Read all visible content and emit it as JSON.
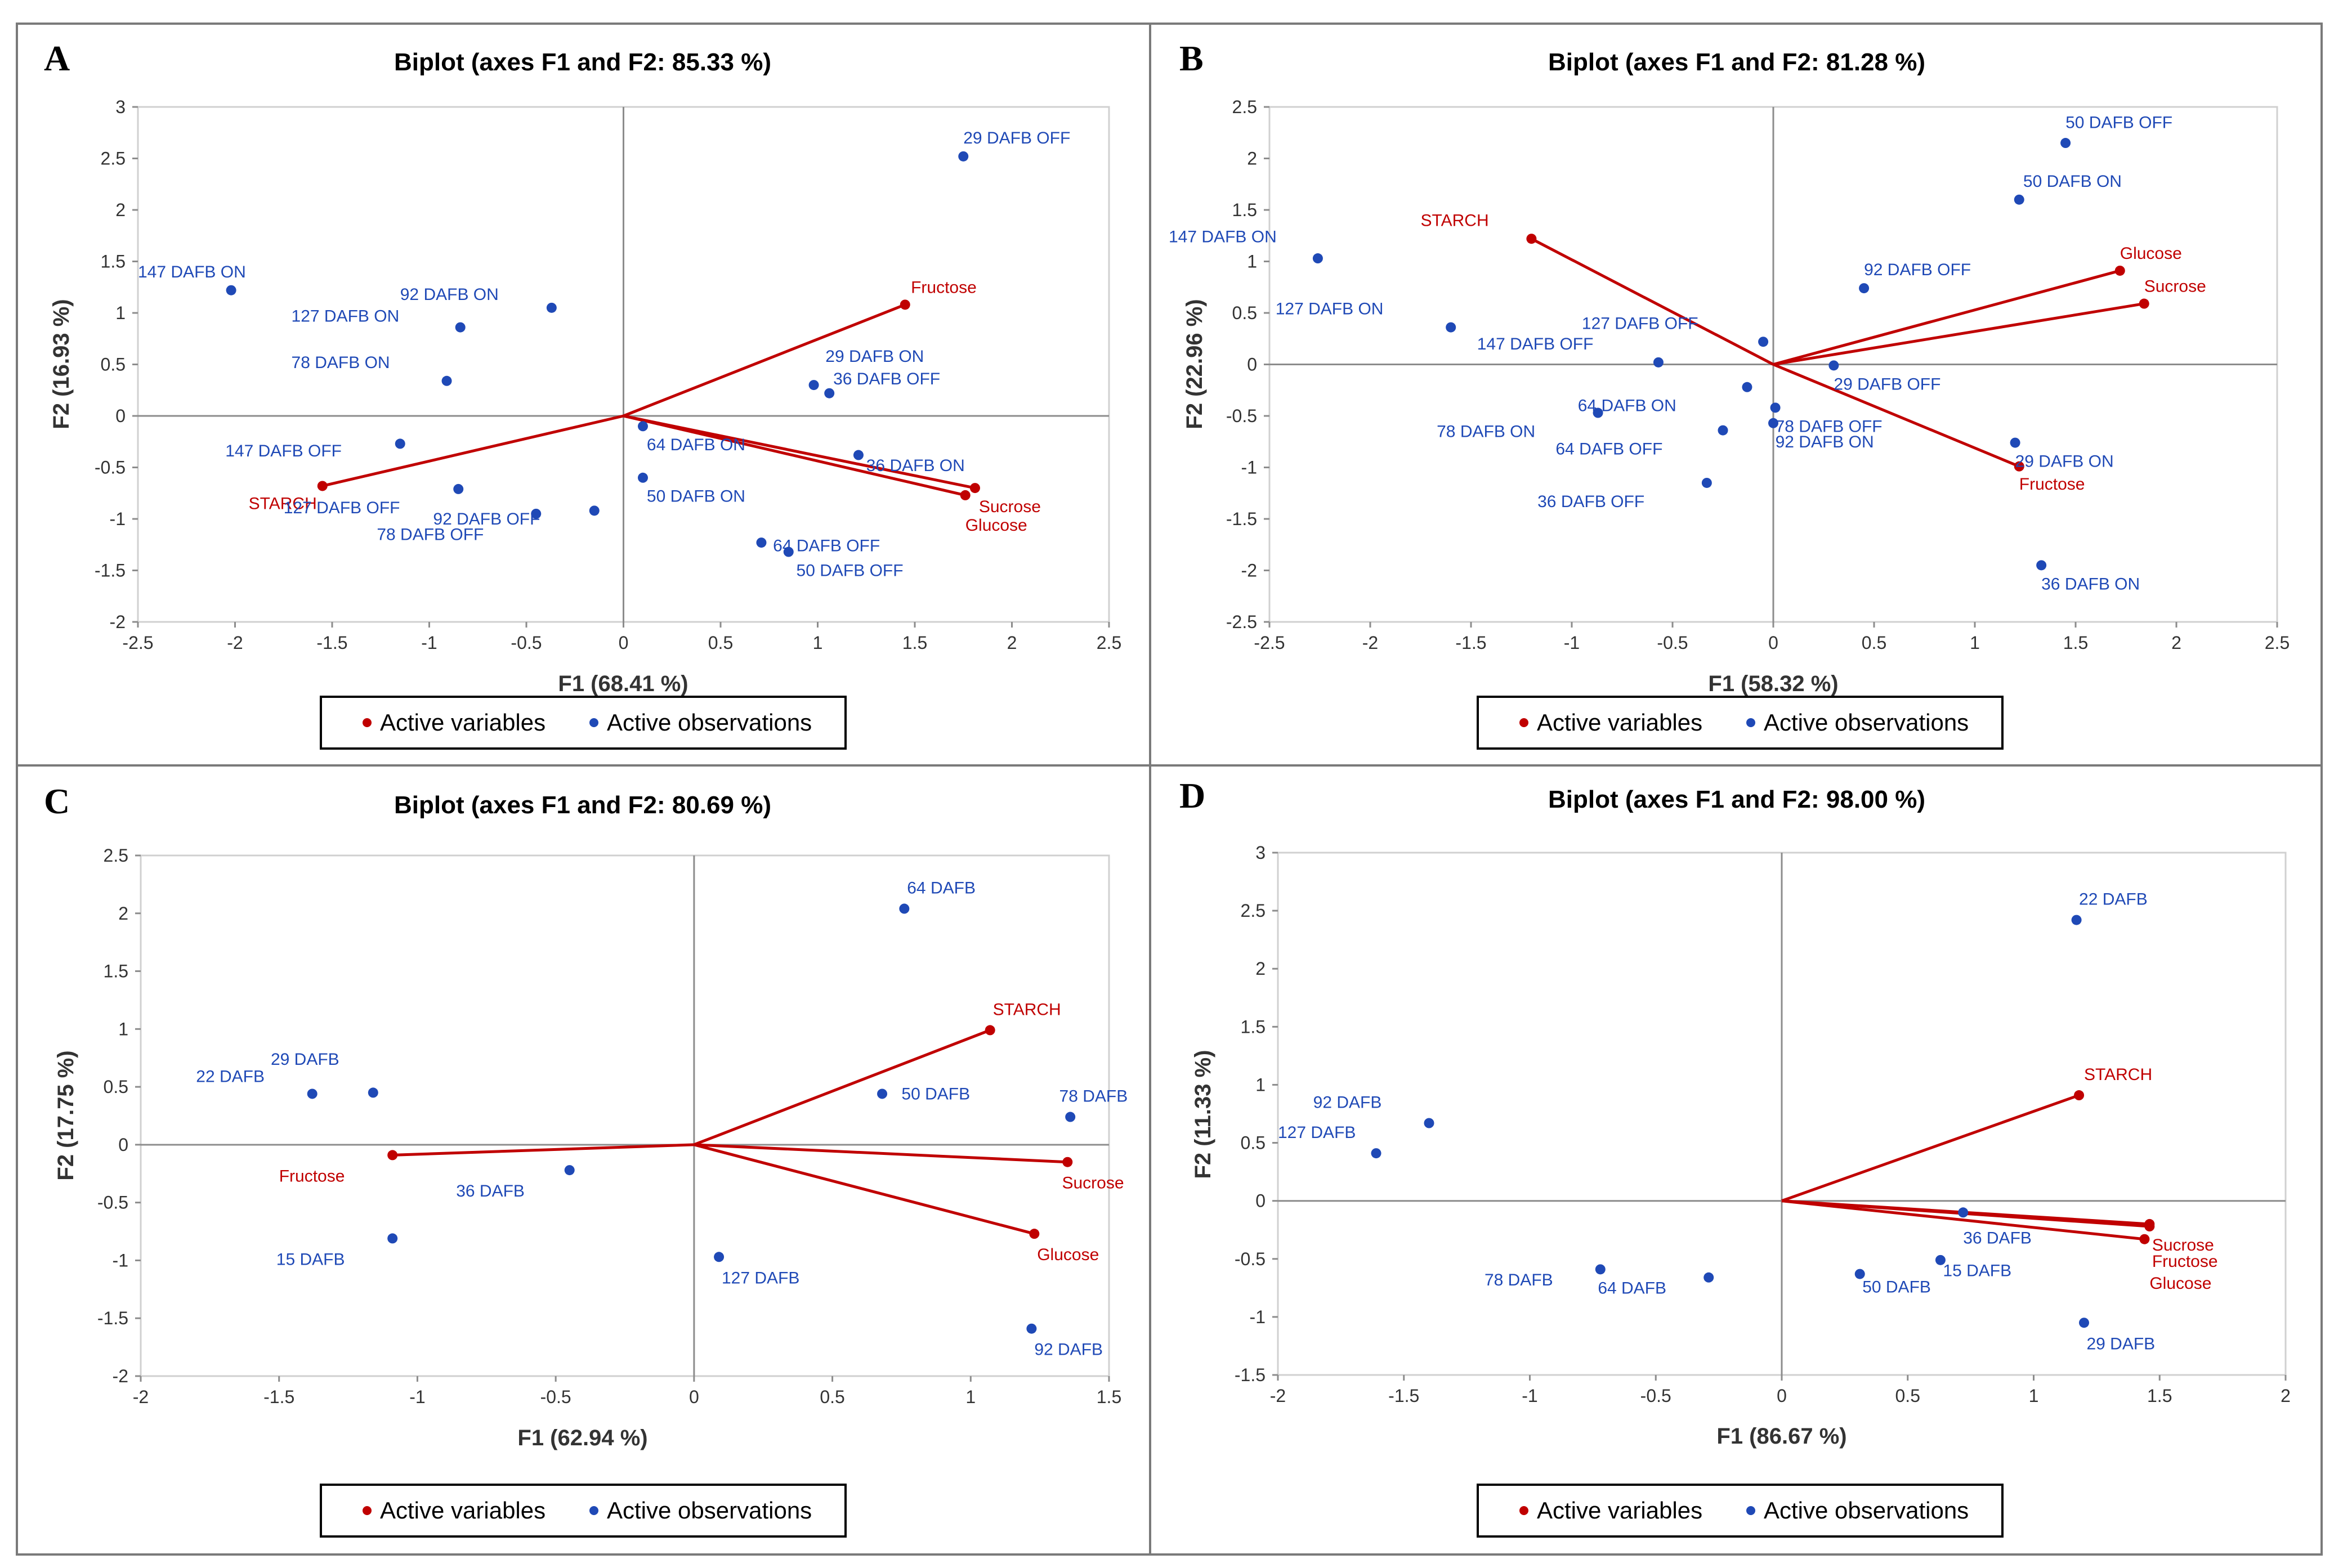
{
  "colors": {
    "variables": "#c00000",
    "observations": "#1f49b6",
    "axis": "#7f7f7f"
  },
  "legend": {
    "variables_label": "Active variables",
    "observations_label": "Active observations"
  },
  "chart_data": [
    {
      "type": "scatter",
      "panel": "A",
      "title": "Biplot (axes F1 and F2: 85.33 %)",
      "xlabel": "F1 (68.41 %)",
      "ylabel": "F2 (16.93 %)",
      "xlim": [
        -2.5,
        2.5
      ],
      "ylim": [
        -2,
        3
      ],
      "xticks": [
        -2.5,
        -2,
        -1.5,
        -1,
        -0.5,
        0,
        0.5,
        1,
        1.5,
        2,
        2.5
      ],
      "yticks": [
        -2,
        -1.5,
        -1,
        -0.5,
        0,
        0.5,
        1,
        1.5,
        2,
        2.5,
        3
      ],
      "variables": [
        {
          "name": "Fructose",
          "x": 1.45,
          "y": 1.08,
          "lx": 1.48,
          "ly": 1.25,
          "anchor": "start"
        },
        {
          "name": "STARCH",
          "x": -1.55,
          "y": -0.68,
          "lx": -1.93,
          "ly": -0.85,
          "anchor": "start"
        },
        {
          "name": "Sucrose",
          "x": 1.81,
          "y": -0.7,
          "lx": 1.83,
          "ly": -0.88,
          "anchor": "start"
        },
        {
          "name": "Glucose",
          "x": 1.76,
          "y": -0.77,
          "lx": 1.76,
          "ly": -1.06,
          "anchor": "start"
        }
      ],
      "observations": [
        {
          "name": "29 DAFB OFF",
          "x": 1.75,
          "y": 2.52,
          "lx": 1.75,
          "ly": 2.7,
          "anchor": "start"
        },
        {
          "name": "147 DAFB ON",
          "x": -2.02,
          "y": 1.22,
          "lx": -2.5,
          "ly": 1.4,
          "anchor": "start"
        },
        {
          "name": "92 DAFB ON",
          "x": -0.84,
          "y": 0.86,
          "lx": -1.15,
          "ly": 1.18,
          "anchor": "start"
        },
        {
          "name": "127 DAFB ON",
          "x": -0.37,
          "y": 1.05,
          "lx": -1.71,
          "ly": 0.97,
          "anchor": "start"
        },
        {
          "name": "78 DAFB ON",
          "x": -0.91,
          "y": 0.34,
          "lx": -1.71,
          "ly": 0.52,
          "anchor": "start"
        },
        {
          "name": "29 DAFB ON",
          "x": 0.98,
          "y": 0.3,
          "lx": 1.04,
          "ly": 0.58,
          "anchor": "start"
        },
        {
          "name": "36 DAFB OFF",
          "x": 1.06,
          "y": 0.22,
          "lx": 1.08,
          "ly": 0.36,
          "anchor": "start"
        },
        {
          "name": "147 DAFB OFF",
          "x": -1.15,
          "y": -0.27,
          "lx": -2.05,
          "ly": -0.34,
          "anchor": "start"
        },
        {
          "name": "64 DAFB ON",
          "x": 0.1,
          "y": -0.1,
          "lx": 0.12,
          "ly": -0.28,
          "anchor": "start"
        },
        {
          "name": "36 DAFB ON",
          "x": 1.21,
          "y": -0.38,
          "lx": 1.25,
          "ly": -0.48,
          "anchor": "start"
        },
        {
          "name": "127 DAFB OFF",
          "x": -0.85,
          "y": -0.71,
          "lx": -1.75,
          "ly": -0.89,
          "anchor": "start"
        },
        {
          "name": "50 DAFB ON",
          "x": 0.1,
          "y": -0.6,
          "lx": 0.12,
          "ly": -0.78,
          "anchor": "start"
        },
        {
          "name": "92 DAFB OFF",
          "x": -0.45,
          "y": -0.95,
          "lx": -0.98,
          "ly": -1.0,
          "anchor": "start"
        },
        {
          "name": "78 DAFB OFF",
          "x": -0.15,
          "y": -0.92,
          "lx": -1.27,
          "ly": -1.15,
          "anchor": "start"
        },
        {
          "name": "64 DAFB OFF",
          "x": 0.71,
          "y": -1.23,
          "lx": 0.77,
          "ly": -1.26,
          "anchor": "start"
        },
        {
          "name": "50 DAFB OFF",
          "x": 0.85,
          "y": -1.32,
          "lx": 0.89,
          "ly": -1.5,
          "anchor": "start"
        }
      ]
    },
    {
      "type": "scatter",
      "panel": "B",
      "title": "Biplot (axes F1 and F2: 81.28 %)",
      "xlabel": "F1 (58.32 %)",
      "ylabel": "F2 (22.96 %)",
      "xlim": [
        -2.5,
        2.5
      ],
      "ylim": [
        -2.5,
        2.5
      ],
      "xticks": [
        -2.5,
        -2,
        -1.5,
        -1,
        -0.5,
        0,
        0.5,
        1,
        1.5,
        2,
        2.5
      ],
      "yticks": [
        -2.5,
        -2,
        -1.5,
        -1,
        -0.5,
        0,
        0.5,
        1,
        1.5,
        2,
        2.5
      ],
      "variables": [
        {
          "name": "STARCH",
          "x": -1.2,
          "y": 1.22,
          "lx": -1.75,
          "ly": 1.4,
          "anchor": "start"
        },
        {
          "name": "Glucose",
          "x": 1.72,
          "y": 0.91,
          "lx": 1.72,
          "ly": 1.08,
          "anchor": "start"
        },
        {
          "name": "Sucrose",
          "x": 1.84,
          "y": 0.59,
          "lx": 1.84,
          "ly": 0.76,
          "anchor": "start"
        },
        {
          "name": "Fructose",
          "x": 1.22,
          "y": -0.99,
          "lx": 1.22,
          "ly": -1.16,
          "anchor": "start"
        }
      ],
      "observations": [
        {
          "name": "50 DAFB OFF",
          "x": 1.45,
          "y": 2.15,
          "lx": 1.45,
          "ly": 2.35,
          "anchor": "start"
        },
        {
          "name": "50 DAFB ON",
          "x": 1.22,
          "y": 1.6,
          "lx": 1.24,
          "ly": 1.78,
          "anchor": "start"
        },
        {
          "name": "147 DAFB ON",
          "x": -2.26,
          "y": 1.03,
          "lx": -3.0,
          "ly": 1.24,
          "anchor": "start"
        },
        {
          "name": "92 DAFB OFF",
          "x": 0.45,
          "y": 0.74,
          "lx": 0.45,
          "ly": 0.92,
          "anchor": "start"
        },
        {
          "name": "127 DAFB ON",
          "x": -1.6,
          "y": 0.36,
          "lx": -2.47,
          "ly": 0.54,
          "anchor": "start"
        },
        {
          "name": "127 DAFB OFF",
          "x": -0.05,
          "y": 0.22,
          "lx": -0.95,
          "ly": 0.4,
          "anchor": "start"
        },
        {
          "name": "147 DAFB OFF",
          "x": -0.57,
          "y": 0.02,
          "lx": -1.47,
          "ly": 0.2,
          "anchor": "start"
        },
        {
          "name": "29 DAFB OFF",
          "x": 0.3,
          "y": -0.01,
          "lx": 0.3,
          "ly": -0.19,
          "anchor": "start"
        },
        {
          "name": "64 DAFB ON",
          "x": -0.13,
          "y": -0.22,
          "lx": -0.97,
          "ly": -0.4,
          "anchor": "start"
        },
        {
          "name": "78 DAFB ON",
          "x": -0.87,
          "y": -0.47,
          "lx": -1.67,
          "ly": -0.65,
          "anchor": "start"
        },
        {
          "name": "78 DAFB OFF",
          "x": 0.01,
          "y": -0.42,
          "lx": 0.01,
          "ly": -0.6,
          "anchor": "start"
        },
        {
          "name": "64 DAFB OFF",
          "x": -0.25,
          "y": -0.64,
          "lx": -1.08,
          "ly": -0.82,
          "anchor": "start"
        },
        {
          "name": "92 DAFB ON",
          "x": 0.0,
          "y": -0.57,
          "lx": 0.01,
          "ly": -0.75,
          "anchor": "start"
        },
        {
          "name": "29 DAFB ON",
          "x": 1.2,
          "y": -0.76,
          "lx": 1.2,
          "ly": -0.94,
          "anchor": "start"
        },
        {
          "name": "36 DAFB OFF",
          "x": -0.33,
          "y": -1.15,
          "lx": -1.17,
          "ly": -1.33,
          "anchor": "start"
        },
        {
          "name": "36 DAFB ON",
          "x": 1.33,
          "y": -1.95,
          "lx": 1.33,
          "ly": -2.13,
          "anchor": "start"
        }
      ]
    },
    {
      "type": "scatter",
      "panel": "C",
      "title": "Biplot (axes F1 and F2: 80.69 %)",
      "xlabel": "F1 (62.94 %)",
      "ylabel": "F2 (17.75 %)",
      "xlim": [
        -2,
        1.5
      ],
      "ylim": [
        -2,
        2.5
      ],
      "xticks": [
        -2,
        -1.5,
        -1,
        -0.5,
        0,
        0.5,
        1,
        1.5
      ],
      "yticks": [
        -2,
        -1.5,
        -1,
        -0.5,
        0,
        0.5,
        1,
        1.5,
        2,
        2.5
      ],
      "variables": [
        {
          "name": "STARCH",
          "x": 1.07,
          "y": 0.99,
          "lx": 1.08,
          "ly": 1.17,
          "anchor": "start"
        },
        {
          "name": "Fructose",
          "x": -1.09,
          "y": -0.09,
          "lx": -1.5,
          "ly": -0.27,
          "anchor": "start"
        },
        {
          "name": "Sucrose",
          "x": 1.35,
          "y": -0.15,
          "lx": 1.33,
          "ly": -0.33,
          "anchor": "start"
        },
        {
          "name": "Glucose",
          "x": 1.23,
          "y": -0.77,
          "lx": 1.24,
          "ly": -0.95,
          "anchor": "start"
        }
      ],
      "observations": [
        {
          "name": "64 DAFB",
          "x": 0.76,
          "y": 2.04,
          "lx": 0.77,
          "ly": 2.22,
          "anchor": "start"
        },
        {
          "name": "29 DAFB",
          "x": -1.16,
          "y": 0.45,
          "lx": -1.53,
          "ly": 0.74,
          "anchor": "start"
        },
        {
          "name": "22 DAFB",
          "x": -1.38,
          "y": 0.44,
          "lx": -1.8,
          "ly": 0.59,
          "anchor": "start"
        },
        {
          "name": "50 DAFB",
          "x": 0.68,
          "y": 0.44,
          "lx": 0.75,
          "ly": 0.44,
          "anchor": "start"
        },
        {
          "name": "78 DAFB",
          "x": 1.36,
          "y": 0.24,
          "lx": 1.32,
          "ly": 0.42,
          "anchor": "start"
        },
        {
          "name": "36 DAFB",
          "x": -0.45,
          "y": -0.22,
          "lx": -0.86,
          "ly": -0.4,
          "anchor": "start"
        },
        {
          "name": "15 DAFB",
          "x": -1.09,
          "y": -0.81,
          "lx": -1.51,
          "ly": -0.99,
          "anchor": "start"
        },
        {
          "name": "127 DAFB",
          "x": 0.09,
          "y": -0.97,
          "lx": 0.1,
          "ly": -1.15,
          "anchor": "start"
        },
        {
          "name": "92 DAFB",
          "x": 1.22,
          "y": -1.59,
          "lx": 1.23,
          "ly": -1.77,
          "anchor": "start"
        }
      ]
    },
    {
      "type": "scatter",
      "panel": "D",
      "title": "Biplot (axes F1 and F2: 98.00 %)",
      "xlabel": "F1 (86.67 %)",
      "ylabel": "F2 (11.33 %)",
      "xlim": [
        -2,
        2
      ],
      "ylim": [
        -1.5,
        3
      ],
      "xticks": [
        -2,
        -1.5,
        -1,
        -0.5,
        0,
        0.5,
        1,
        1.5,
        2
      ],
      "yticks": [
        -1.5,
        -1,
        -0.5,
        0,
        0.5,
        1,
        1.5,
        2,
        2.5,
        3
      ],
      "variables": [
        {
          "name": "STARCH",
          "x": 1.18,
          "y": 0.91,
          "lx": 1.2,
          "ly": 1.09,
          "anchor": "start"
        },
        {
          "name": "Sucrose",
          "x": 1.46,
          "y": -0.2,
          "lx": 1.47,
          "ly": -0.38,
          "anchor": "start"
        },
        {
          "name": "Fructose",
          "x": 1.46,
          "y": -0.22,
          "lx": 1.47,
          "ly": -0.52,
          "anchor": "start"
        },
        {
          "name": "Glucose",
          "x": 1.44,
          "y": -0.33,
          "lx": 1.46,
          "ly": -0.71,
          "anchor": "start"
        }
      ],
      "observations": [
        {
          "name": "22 DAFB",
          "x": 1.17,
          "y": 2.42,
          "lx": 1.18,
          "ly": 2.6,
          "anchor": "start"
        },
        {
          "name": "92 DAFB",
          "x": -1.4,
          "y": 0.67,
          "lx": -1.86,
          "ly": 0.85,
          "anchor": "start"
        },
        {
          "name": "127 DAFB",
          "x": -1.61,
          "y": 0.41,
          "lx": -2.0,
          "ly": 0.59,
          "anchor": "start"
        },
        {
          "name": "36 DAFB",
          "x": 0.72,
          "y": -0.1,
          "lx": 0.72,
          "ly": -0.32,
          "anchor": "start"
        },
        {
          "name": "15 DAFB",
          "x": 0.63,
          "y": -0.51,
          "lx": 0.64,
          "ly": -0.6,
          "anchor": "start"
        },
        {
          "name": "78 DAFB",
          "x": -0.72,
          "y": -0.59,
          "lx": -1.18,
          "ly": -0.68,
          "anchor": "start"
        },
        {
          "name": "64 DAFB",
          "x": -0.29,
          "y": -0.66,
          "lx": -0.73,
          "ly": -0.75,
          "anchor": "start"
        },
        {
          "name": "50 DAFB",
          "x": 0.31,
          "y": -0.63,
          "lx": 0.32,
          "ly": -0.74,
          "anchor": "start"
        },
        {
          "name": "29 DAFB",
          "x": 1.2,
          "y": -1.05,
          "lx": 1.21,
          "ly": -1.23,
          "anchor": "start"
        }
      ]
    }
  ]
}
